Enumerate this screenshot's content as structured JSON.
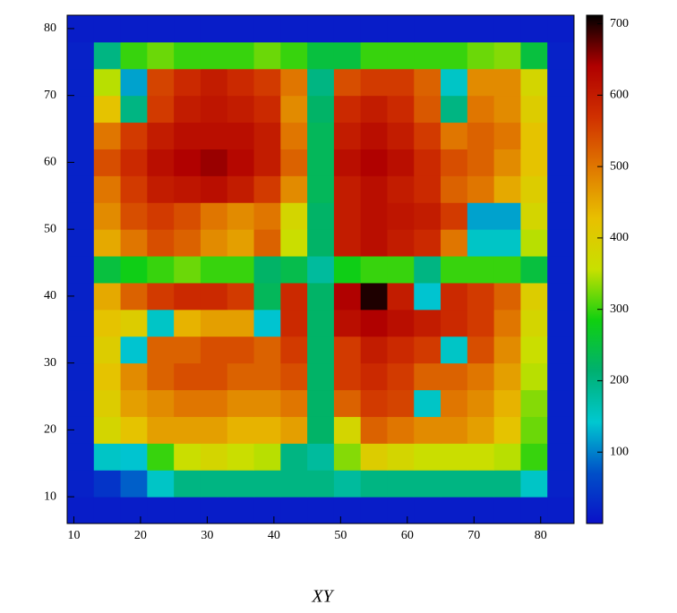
{
  "chart_data": {
    "type": "heatmap",
    "title": "XY",
    "xbins": [
      9,
      13,
      17,
      21,
      25,
      29,
      33,
      37,
      41,
      45,
      49,
      53,
      57,
      61,
      65,
      69,
      73,
      77,
      81,
      85
    ],
    "ybins": [
      6,
      10,
      14,
      18,
      22,
      26,
      30,
      34,
      38,
      42,
      46,
      50,
      54,
      58,
      62,
      66,
      70,
      74,
      78,
      82
    ],
    "values": [
      [
        15,
        15,
        15,
        15,
        15,
        15,
        15,
        15,
        15,
        15,
        15,
        15,
        15,
        15,
        15,
        15,
        15,
        15,
        15
      ],
      [
        20,
        40,
        80,
        150,
        200,
        200,
        200,
        200,
        200,
        200,
        180,
        200,
        200,
        200,
        200,
        200,
        200,
        150,
        20
      ],
      [
        20,
        150,
        140,
        300,
        360,
        380,
        360,
        350,
        200,
        180,
        330,
        400,
        380,
        360,
        360,
        360,
        350,
        300,
        20
      ],
      [
        20,
        380,
        420,
        460,
        460,
        460,
        440,
        440,
        460,
        220,
        380,
        520,
        500,
        480,
        480,
        460,
        420,
        320,
        20
      ],
      [
        20,
        400,
        460,
        480,
        500,
        500,
        480,
        480,
        500,
        220,
        520,
        560,
        550,
        150,
        500,
        480,
        440,
        330,
        20
      ],
      [
        20,
        420,
        480,
        520,
        540,
        540,
        520,
        520,
        540,
        220,
        560,
        580,
        560,
        520,
        520,
        500,
        460,
        350,
        20
      ],
      [
        20,
        400,
        140,
        520,
        520,
        540,
        540,
        520,
        560,
        220,
        560,
        600,
        580,
        560,
        150,
        540,
        480,
        360,
        20
      ],
      [
        20,
        420,
        400,
        150,
        440,
        460,
        460,
        140,
        580,
        220,
        620,
        640,
        620,
        600,
        580,
        560,
        500,
        380,
        20
      ],
      [
        20,
        450,
        520,
        560,
        580,
        580,
        560,
        230,
        580,
        220,
        640,
        700,
        600,
        140,
        580,
        560,
        520,
        400,
        20
      ],
      [
        20,
        250,
        280,
        300,
        320,
        300,
        300,
        220,
        240,
        180,
        280,
        300,
        300,
        200,
        300,
        300,
        300,
        250,
        20
      ],
      [
        20,
        450,
        500,
        540,
        520,
        480,
        460,
        520,
        360,
        220,
        600,
        620,
        600,
        580,
        500,
        150,
        150,
        350,
        20
      ],
      [
        20,
        480,
        540,
        560,
        540,
        500,
        480,
        500,
        380,
        220,
        600,
        620,
        610,
        600,
        560,
        120,
        120,
        380,
        20
      ],
      [
        20,
        500,
        560,
        600,
        610,
        620,
        600,
        560,
        480,
        230,
        600,
        620,
        600,
        580,
        520,
        500,
        450,
        400,
        20
      ],
      [
        20,
        540,
        580,
        620,
        640,
        650,
        630,
        600,
        520,
        230,
        620,
        640,
        620,
        580,
        540,
        520,
        480,
        420,
        20
      ],
      [
        20,
        500,
        560,
        600,
        620,
        620,
        620,
        600,
        500,
        230,
        600,
        620,
        600,
        560,
        500,
        520,
        500,
        420,
        20
      ],
      [
        20,
        420,
        200,
        560,
        600,
        610,
        600,
        580,
        480,
        220,
        580,
        600,
        580,
        530,
        200,
        500,
        480,
        400,
        20
      ],
      [
        20,
        350,
        120,
        550,
        580,
        600,
        580,
        560,
        500,
        200,
        540,
        560,
        560,
        520,
        150,
        480,
        480,
        380,
        20
      ],
      [
        20,
        200,
        300,
        320,
        300,
        300,
        300,
        320,
        300,
        250,
        250,
        300,
        300,
        300,
        300,
        320,
        330,
        250,
        20
      ],
      [
        15,
        15,
        15,
        15,
        15,
        15,
        15,
        15,
        15,
        15,
        15,
        15,
        15,
        15,
        15,
        15,
        15,
        15,
        15
      ]
    ],
    "xlim": [
      9,
      85
    ],
    "ylim": [
      6,
      82
    ],
    "zlim": [
      0,
      712
    ],
    "xticks": [
      10,
      20,
      30,
      40,
      50,
      60,
      70,
      80
    ],
    "yticks": [
      10,
      20,
      30,
      40,
      50,
      60,
      70,
      80
    ],
    "zticks": [
      100,
      200,
      300,
      400,
      500,
      600,
      700
    ],
    "colorscale": [
      "#0a10c8",
      "#0050c8",
      "#00c8d0",
      "#00b070",
      "#10d010",
      "#c8e000",
      "#e8c000",
      "#e07800",
      "#d03000",
      "#b00000",
      "#000000"
    ]
  }
}
